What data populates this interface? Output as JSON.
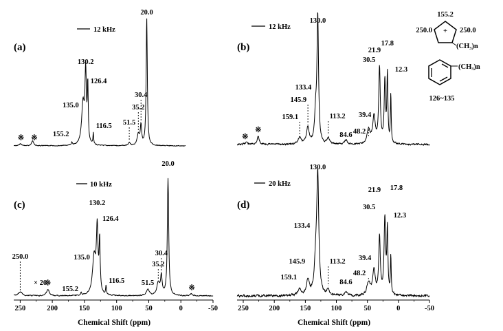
{
  "chart_data": [
    {
      "panel": "(a)",
      "type": "line",
      "rate_label": "12 kHz",
      "xlabel": "",
      "xlim": [
        260,
        -50
      ],
      "xticks": [
        "250",
        "200",
        "150",
        "100",
        "50",
        "0",
        "-50"
      ],
      "series": [
        {
          "peaks": [
            {
              "x": 155.2,
              "h": 0.02,
              "w": 2
            },
            {
              "x": 135.0,
              "h": 0.3,
              "w": 6
            },
            {
              "x": 130.2,
              "h": 0.5,
              "w": 3
            },
            {
              "x": 126.4,
              "h": 0.4,
              "w": 2
            },
            {
              "x": 116.5,
              "h": 0.08,
              "w": 1.5
            },
            {
              "x": 51.5,
              "h": 0.02,
              "w": 4
            },
            {
              "x": 35.2,
              "h": 0.08,
              "w": 5
            },
            {
              "x": 30.4,
              "h": 0.14,
              "w": 3
            },
            {
              "x": 20.0,
              "h": 0.92,
              "w": 2.5
            },
            {
              "x": 226,
              "h": 0.04,
              "w": 4
            },
            {
              "x": 248,
              "h": 0.015,
              "w": 5
            }
          ]
        }
      ],
      "annotations": [
        {
          "x": 155.2,
          "text": "155.2"
        },
        {
          "x": 135.0,
          "text": "135.0"
        },
        {
          "x": 130.2,
          "text": "130.2"
        },
        {
          "x": 126.4,
          "text": "126.4"
        },
        {
          "x": 116.5,
          "text": "116.5"
        },
        {
          "x": 51.5,
          "text": "51.5"
        },
        {
          "x": 35.2,
          "text": "35.2"
        },
        {
          "x": 30.4,
          "text": "30.4"
        },
        {
          "x": 20.0,
          "text": "20.0"
        }
      ],
      "spinning_sidebands": [
        247,
        223
      ],
      "sideband_symbol": "※"
    },
    {
      "panel": "(b)",
      "type": "line",
      "rate_label": "12 kHz",
      "xlabel": "",
      "xlim": [
        260,
        -50
      ],
      "xticks": [
        "250",
        "200",
        "150",
        "100",
        "50",
        "0",
        "-50"
      ],
      "series": [
        {
          "peaks": [
            {
              "x": 159.1,
              "h": 0.05,
              "w": 6
            },
            {
              "x": 145.9,
              "h": 0.12,
              "w": 5
            },
            {
              "x": 133.4,
              "h": 0.2,
              "w": 4
            },
            {
              "x": 130.0,
              "h": 0.92,
              "w": 3
            },
            {
              "x": 113.2,
              "h": 0.05,
              "w": 4
            },
            {
              "x": 84.6,
              "h": 0.03,
              "w": 5
            },
            {
              "x": 48.2,
              "h": 0.1,
              "w": 6
            },
            {
              "x": 39.4,
              "h": 0.2,
              "w": 5
            },
            {
              "x": 30.5,
              "h": 0.55,
              "w": 3
            },
            {
              "x": 21.9,
              "h": 0.45,
              "w": 2.5
            },
            {
              "x": 17.8,
              "h": 0.5,
              "w": 2
            },
            {
              "x": 12.3,
              "h": 0.35,
              "w": 1.5
            },
            {
              "x": 226,
              "h": 0.06,
              "w": 4
            },
            {
              "x": 245,
              "h": 0.02,
              "w": 4
            }
          ]
        }
      ],
      "annotations": [
        {
          "x": 159.1,
          "text": "159.1"
        },
        {
          "x": 145.9,
          "text": "145.9"
        },
        {
          "x": 133.4,
          "text": "133.4"
        },
        {
          "x": 130.0,
          "text": "130.0"
        },
        {
          "x": 113.2,
          "text": "113.2"
        },
        {
          "x": 84.6,
          "text": "84.6"
        },
        {
          "x": 48.2,
          "text": "48.2"
        },
        {
          "x": 39.4,
          "text": "39.4"
        },
        {
          "x": 30.5,
          "text": "30.5"
        },
        {
          "x": 21.9,
          "text": "21.9"
        },
        {
          "x": 17.8,
          "text": "17.8"
        },
        {
          "x": 12.3,
          "text": "12.3"
        }
      ],
      "spinning_sidebands": [
        247,
        226
      ],
      "sideband_symbol": "※"
    },
    {
      "panel": "(c)",
      "type": "line",
      "rate_label": "10 kHz",
      "xlabel": "Chemical Shift (ppm)",
      "xlim": [
        260,
        -50
      ],
      "xticks": [
        "250",
        "200",
        "150",
        "100",
        "50",
        "0",
        "-50"
      ],
      "series": [
        {
          "peaks": [
            {
              "x": 250.0,
              "h": 0.03,
              "w": 8
            },
            {
              "x": 207,
              "h": 0.05,
              "w": 5
            },
            {
              "x": 155.2,
              "h": 0.02,
              "w": 2
            },
            {
              "x": 135.0,
              "h": 0.3,
              "w": 6
            },
            {
              "x": 130.2,
              "h": 0.5,
              "w": 3
            },
            {
              "x": 126.4,
              "h": 0.4,
              "w": 2
            },
            {
              "x": 116.5,
              "h": 0.07,
              "w": 1.5
            },
            {
              "x": 51.5,
              "h": 0.05,
              "w": 5
            },
            {
              "x": 35.2,
              "h": 0.1,
              "w": 5
            },
            {
              "x": 30.4,
              "h": 0.15,
              "w": 3
            },
            {
              "x": 20.0,
              "h": 0.92,
              "w": 2.5
            },
            {
              "x": -16,
              "h": 0.015,
              "w": 4
            }
          ]
        }
      ],
      "annotations": [
        {
          "x": 250.0,
          "text": "250.0"
        },
        {
          "x": 155.2,
          "text": "155.2"
        },
        {
          "x": 135.0,
          "text": "135.0"
        },
        {
          "x": 130.2,
          "text": "130.2"
        },
        {
          "x": 126.4,
          "text": "126.4"
        },
        {
          "x": 116.5,
          "text": "116.5"
        },
        {
          "x": 51.5,
          "text": "51.5"
        },
        {
          "x": 35.2,
          "text": "35.2"
        },
        {
          "x": 30.4,
          "text": "30.4"
        },
        {
          "x": 20.0,
          "text": "20.0"
        }
      ],
      "magnification_label": "× 20",
      "spinning_sidebands": [
        207,
        -17
      ],
      "sideband_symbol": "※"
    },
    {
      "panel": "(d)",
      "type": "line",
      "rate_label": "20 kHz",
      "xlabel": "Chemical Shift (ppm)",
      "xlim": [
        260,
        -50
      ],
      "xticks": [
        "250",
        "200",
        "150",
        "100",
        "50",
        "0",
        "-50"
      ],
      "series": [
        {
          "peaks": [
            {
              "x": 159.1,
              "h": 0.05,
              "w": 6
            },
            {
              "x": 145.9,
              "h": 0.12,
              "w": 5
            },
            {
              "x": 133.4,
              "h": 0.22,
              "w": 5
            },
            {
              "x": 130.0,
              "h": 0.92,
              "w": 4
            },
            {
              "x": 113.2,
              "h": 0.05,
              "w": 4
            },
            {
              "x": 84.6,
              "h": 0.03,
              "w": 5
            },
            {
              "x": 48.2,
              "h": 0.1,
              "w": 6
            },
            {
              "x": 39.4,
              "h": 0.2,
              "w": 5
            },
            {
              "x": 30.5,
              "h": 0.45,
              "w": 3
            },
            {
              "x": 21.9,
              "h": 0.6,
              "w": 3
            },
            {
              "x": 17.8,
              "h": 0.5,
              "w": 2
            },
            {
              "x": 12.3,
              "h": 0.3,
              "w": 1.5
            }
          ]
        }
      ],
      "annotations": [
        {
          "x": 159.1,
          "text": "159.1"
        },
        {
          "x": 145.9,
          "text": "145.9"
        },
        {
          "x": 133.4,
          "text": "133.4"
        },
        {
          "x": 130.0,
          "text": "130.0"
        },
        {
          "x": 113.2,
          "text": "113.2"
        },
        {
          "x": 84.6,
          "text": "84.6"
        },
        {
          "x": 48.2,
          "text": "48.2"
        },
        {
          "x": 39.4,
          "text": "39.4"
        },
        {
          "x": 30.5,
          "text": "30.5"
        },
        {
          "x": 21.9,
          "text": "21.9"
        },
        {
          "x": 17.8,
          "text": "17.8"
        },
        {
          "x": 12.3,
          "text": "12.3"
        }
      ],
      "spinning_sidebands": [],
      "sideband_symbol": "※"
    }
  ],
  "structures": {
    "cation": {
      "top_shift": "155.2",
      "left_shift": "250.0",
      "right_shift": "250.0",
      "charge": "+",
      "substituent": "(CH₃)n"
    },
    "aromatic": {
      "substituent": "(CH₃)n",
      "range_label": "126~135"
    }
  }
}
